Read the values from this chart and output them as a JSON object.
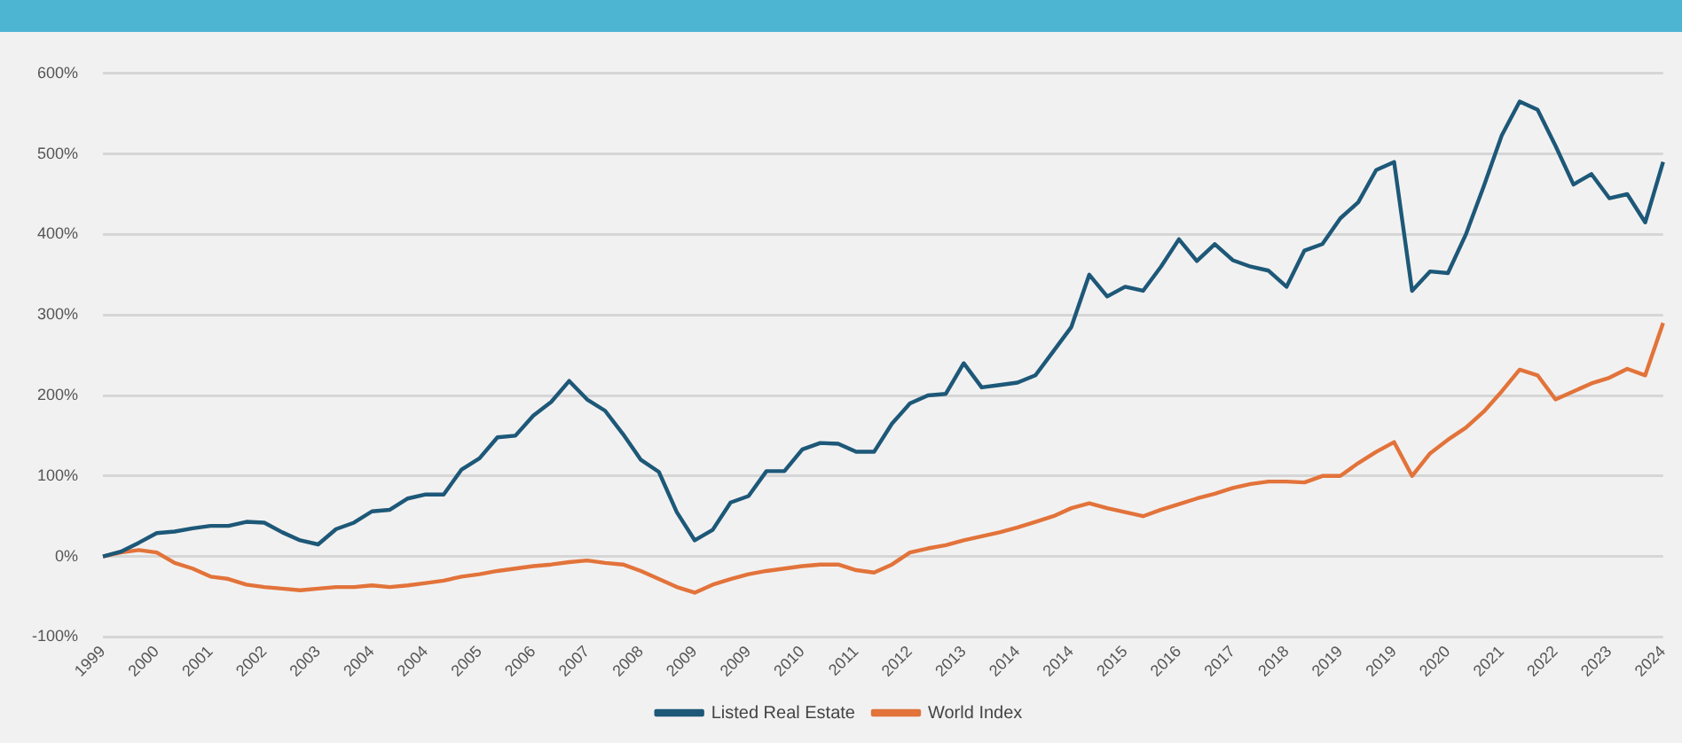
{
  "chart_data": {
    "type": "line",
    "categories": [
      "1999",
      null,
      null,
      "2000",
      null,
      null,
      "2001",
      null,
      null,
      "2002",
      null,
      null,
      "2003",
      null,
      null,
      "2004",
      null,
      null,
      "2004",
      null,
      null,
      "2005",
      null,
      null,
      "2006",
      null,
      null,
      "2007",
      null,
      null,
      "2008",
      null,
      null,
      "2009",
      null,
      null,
      "2009",
      null,
      null,
      "2010",
      null,
      null,
      "2011",
      null,
      null,
      "2012",
      null,
      null,
      "2013",
      null,
      null,
      "2014",
      null,
      null,
      "2014",
      null,
      null,
      "2015",
      null,
      null,
      "2016",
      null,
      null,
      "2017",
      null,
      null,
      "2018",
      null,
      null,
      "2019",
      null,
      null,
      "2019",
      null,
      null,
      "2020",
      null,
      null,
      "2021",
      null,
      null,
      "2022",
      null,
      null,
      "2023",
      null,
      null,
      "2024"
    ],
    "series": [
      {
        "name": "Listed Real Estate",
        "color": "#1d5878",
        "values": [
          0,
          6,
          17,
          29,
          31,
          35,
          38,
          38,
          43,
          42,
          30,
          20,
          15,
          34,
          42,
          56,
          58,
          72,
          77,
          77,
          108,
          122,
          148,
          150,
          175,
          192,
          218,
          195,
          181,
          152,
          120,
          105,
          55,
          20,
          33,
          67,
          75,
          106,
          106,
          133,
          141,
          140,
          130,
          130,
          165,
          190,
          200,
          202,
          240,
          210,
          213,
          216,
          225,
          255,
          285,
          350,
          323,
          335,
          330,
          360,
          394,
          367,
          388,
          368,
          360,
          355,
          335,
          380,
          388,
          420,
          440,
          480,
          490,
          330,
          354,
          352,
          400,
          460,
          523,
          565,
          555,
          510,
          462,
          475,
          445,
          450,
          415,
          490
        ]
      },
      {
        "name": "World Index",
        "color": "#e2733a",
        "values": [
          0,
          5,
          8,
          5,
          -8,
          -15,
          -25,
          -28,
          -35,
          -38,
          -40,
          -42,
          -40,
          -38,
          -38,
          -36,
          -38,
          -36,
          -33,
          -30,
          -25,
          -22,
          -18,
          -15,
          -12,
          -10,
          -7,
          -5,
          -8,
          -10,
          -18,
          -28,
          -38,
          -45,
          -35,
          -28,
          -22,
          -18,
          -15,
          -12,
          -10,
          -10,
          -17,
          -20,
          -10,
          5,
          10,
          14,
          20,
          25,
          30,
          36,
          43,
          50,
          60,
          66,
          60,
          55,
          50,
          58,
          65,
          72,
          78,
          85,
          90,
          93,
          93,
          92,
          100,
          100,
          116,
          130,
          142,
          100,
          128,
          145,
          160,
          180,
          205,
          232,
          225,
          195,
          205,
          215,
          222,
          233,
          225,
          290
        ]
      }
    ],
    "ylim": [
      -100,
      600
    ],
    "yticks": [
      {
        "value": -100,
        "label": "-100%"
      },
      {
        "value": 0,
        "label": "0%"
      },
      {
        "value": 100,
        "label": "100%"
      },
      {
        "value": 200,
        "label": "200%"
      },
      {
        "value": 300,
        "label": "300%"
      },
      {
        "value": 400,
        "label": "400%"
      },
      {
        "value": 500,
        "label": "500%"
      },
      {
        "value": 600,
        "label": "600%"
      }
    ],
    "grid": "y",
    "legend": "bottom",
    "marker": "none",
    "line_style": "solid"
  }
}
